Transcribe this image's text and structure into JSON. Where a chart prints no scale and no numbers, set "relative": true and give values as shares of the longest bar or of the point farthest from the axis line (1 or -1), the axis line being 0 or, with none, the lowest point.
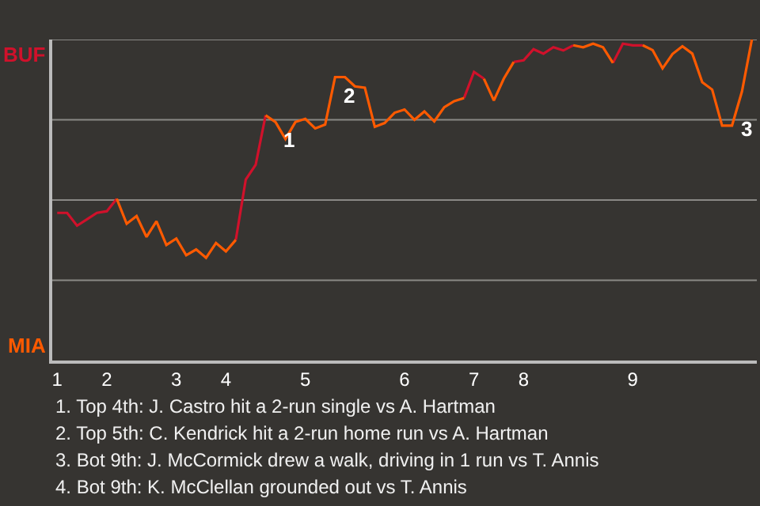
{
  "chart_data": {
    "type": "line",
    "relative": true,
    "categories": [
      "1",
      null,
      null,
      null,
      null,
      "2",
      null,
      null,
      null,
      null,
      null,
      null,
      "3",
      null,
      null,
      null,
      null,
      "4",
      null,
      null,
      null,
      null,
      null,
      null,
      null,
      "5",
      null,
      null,
      null,
      null,
      null,
      null,
      null,
      null,
      null,
      "6",
      null,
      null,
      null,
      null,
      null,
      null,
      "7",
      null,
      null,
      null,
      null,
      "8",
      null,
      null,
      null,
      null,
      null,
      null,
      null,
      null,
      null,
      null,
      "9",
      null,
      null,
      null,
      null,
      null,
      null,
      null,
      null,
      null,
      null,
      null,
      null
    ],
    "series": [
      {
        "color": "#d0112b",
        "values": [
          0.46,
          0.46,
          0.42,
          0.44,
          0.46,
          0.465,
          0.504,
          null,
          null,
          null,
          null,
          null,
          null,
          null,
          null,
          null,
          null,
          null,
          0.376,
          0.564,
          0.61,
          0.764,
          null,
          null,
          null,
          null,
          null,
          null,
          0.883,
          0.883,
          null,
          null,
          null,
          null,
          null,
          null,
          null,
          null,
          null,
          null,
          null,
          0.818,
          0.899,
          0.878,
          null,
          null,
          0.93,
          0.935,
          0.97,
          0.956,
          0.976,
          0.966,
          0.982,
          null,
          null,
          null,
          0.927,
          0.987,
          0.982,
          0.982,
          null,
          null,
          null,
          null,
          null,
          null,
          null,
          null,
          null,
          null,
          null
        ]
      },
      {
        "color": "#ff5a00",
        "values": [
          null,
          null,
          null,
          null,
          null,
          null,
          0.504,
          0.426,
          0.45,
          0.385,
          0.434,
          0.36,
          0.38,
          0.328,
          0.346,
          0.32,
          0.366,
          0.34,
          0.376,
          null,
          null,
          0.764,
          0.743,
          0.69,
          0.743,
          0.753,
          0.723,
          0.735,
          0.883,
          0.883,
          0.854,
          0.85,
          0.728,
          0.74,
          0.772,
          0.782,
          0.75,
          0.776,
          0.745,
          0.789,
          0.808,
          0.818,
          null,
          0.878,
          0.81,
          0.878,
          0.93,
          null,
          null,
          null,
          null,
          null,
          0.982,
          0.976,
          0.987,
          0.976,
          0.927,
          null,
          null,
          0.982,
          0.967,
          0.91,
          0.955,
          0.979,
          0.956,
          0.867,
          0.844,
          0.732,
          0.732,
          0.838,
          1
        ]
      }
    ],
    "grid": "y",
    "annotations": [
      {
        "text": "1",
        "y": 0.743
      },
      {
        "text": "2",
        "y": 0.883
      },
      "3",
      "BUF",
      "MIA",
      "1. Top 4th: J. Castro hit a 2-run single vs A. Hartman",
      "2. Top 5th: C. Kendrick hit a 2-run home run vs A. Hartman",
      "3. Bot 9th: J. McCormick drew a walk, driving in 1 run vs T. Annis",
      "4. Bot 9th: K. McClellan grounded out vs T. Annis"
    ]
  }
}
